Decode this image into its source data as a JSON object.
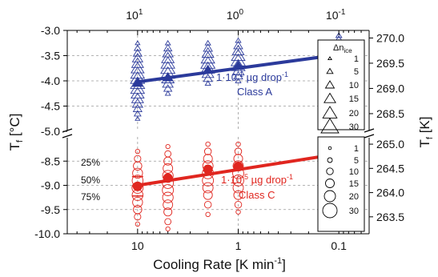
{
  "chart_data": {
    "type": "scatter",
    "x_scale": "log",
    "x_reversed": true,
    "xlabel_main": "Cooling Rate [K min",
    "xlabel_sup": "-1",
    "xlabel_end": "]",
    "xlim": [
      50,
      0.05
    ],
    "bottom_x_ticks": [
      {
        "value": 10,
        "label": "10"
      },
      {
        "value": 1,
        "label": "1"
      },
      {
        "value": 0.1,
        "label": "0.1"
      }
    ],
    "top_x_ticks": [
      {
        "value": 10,
        "base": "10",
        "exp": "1"
      },
      {
        "value": 1,
        "base": "10",
        "exp": "0"
      },
      {
        "value": 0.1,
        "base": "10",
        "exp": "-1"
      }
    ],
    "ylabel_left_main": "T",
    "ylabel_left_sub": "f",
    "ylabel_left_end": " [°C]",
    "ylabel_right_main": "T",
    "ylabel_right_sub": "f",
    "ylabel_right_end": " [K]",
    "upper_panel": {
      "ylim": [
        -5.0,
        -3.0
      ],
      "left_ticks": [
        "-3.0",
        "-3.5",
        "-4.0",
        "-4.5",
        "-5.0"
      ],
      "right_ticks": [
        "270.0",
        "269.5",
        "269.0",
        "268.5"
      ],
      "right_tick_values": [
        270.0,
        269.5,
        269.0,
        268.5
      ]
    },
    "lower_panel": {
      "ylim": [
        -10.0,
        -8.0
      ],
      "left_ticks": [
        "-8.5",
        "-9.0",
        "-9.5",
        "-10.0"
      ],
      "right_ticks": [
        "265.0",
        "264.5",
        "264.0",
        "263.5"
      ],
      "right_tick_values": [
        265.0,
        264.5,
        264.0,
        263.5
      ]
    },
    "series": [
      {
        "name": "Class A",
        "color": "#2b3a9b",
        "marker": "triangle",
        "median_x": [
          10,
          5,
          2,
          1,
          0.1
        ],
        "median_y": [
          -4.04,
          -3.93,
          -3.78,
          -3.7,
          -3.5
        ],
        "fit_x": [
          10,
          0.1
        ],
        "fit_y": [
          -4.02,
          -3.48
        ],
        "spread_y": [
          [
            -3.25,
            -3.35,
            -3.45,
            -3.55,
            -3.65,
            -3.75,
            -3.85,
            -3.95,
            -4.05,
            -4.15,
            -4.25,
            -4.35,
            -4.45,
            -4.55,
            -4.65,
            -4.75
          ],
          [
            -3.25,
            -3.35,
            -3.45,
            -3.55,
            -3.65,
            -3.75,
            -3.85,
            -3.95,
            -4.05,
            -4.15,
            -4.25
          ],
          [
            -3.25,
            -3.35,
            -3.45,
            -3.55,
            -3.65,
            -3.75,
            -3.85,
            -3.95,
            -4.05
          ],
          [
            -3.2,
            -3.3,
            -3.4,
            -3.5,
            -3.6,
            -3.7,
            -3.8,
            -3.9,
            -4.0
          ],
          [
            -3.1,
            -3.2,
            -3.3,
            -3.4,
            -3.5,
            -3.6,
            -3.7
          ]
        ],
        "annotation_main": "1·10",
        "annotation_sup": "-1",
        "annotation_unit": " µg drop",
        "annotation_sup2": "-1",
        "annotation_class": "Class A"
      },
      {
        "name": "Class C",
        "color": "#e0261f",
        "marker": "circle",
        "median_x": [
          10,
          5,
          2,
          1,
          0.1
        ],
        "median_y": [
          -9.02,
          -8.85,
          -8.67,
          -8.61,
          -8.38
        ],
        "fit_x": [
          10,
          0.1
        ],
        "fit_y": [
          -9.0,
          -8.35
        ],
        "spread_y": [
          [
            -8.3,
            -8.45,
            -8.6,
            -8.75,
            -8.9,
            -9.05,
            -9.2,
            -9.35,
            -9.5,
            -9.65,
            -9.8
          ],
          [
            -8.2,
            -8.35,
            -8.5,
            -8.65,
            -8.8,
            -8.95,
            -9.1,
            -9.25,
            -9.4,
            -9.55,
            -9.75,
            -9.9
          ],
          [
            -8.15,
            -8.3,
            -8.45,
            -8.6,
            -8.75,
            -8.9,
            -9.05,
            -9.2,
            -9.4,
            -9.6
          ],
          [
            -8.15,
            -8.3,
            -8.45,
            -8.6,
            -8.75,
            -8.9,
            -9.05,
            -9.2,
            -9.4,
            -9.55
          ],
          [
            -8.2,
            -8.3,
            -8.45,
            -8.6,
            -8.75,
            -8.9,
            -9.1,
            -9.3,
            -9.55,
            -9.8
          ]
        ],
        "annotation_main": "1·10",
        "annotation_sup": "-5",
        "annotation_unit": " µg drop",
        "annotation_sup2": "-1",
        "annotation_class": "Class C"
      }
    ],
    "percentile_labels": [
      "25%",
      "50%",
      "75%"
    ],
    "legend": {
      "placement": "right",
      "title_main": "Δn",
      "title_sub": "ice",
      "sizes": [
        "1",
        "5",
        "10",
        "15",
        "20",
        "30"
      ]
    },
    "grid": true
  }
}
